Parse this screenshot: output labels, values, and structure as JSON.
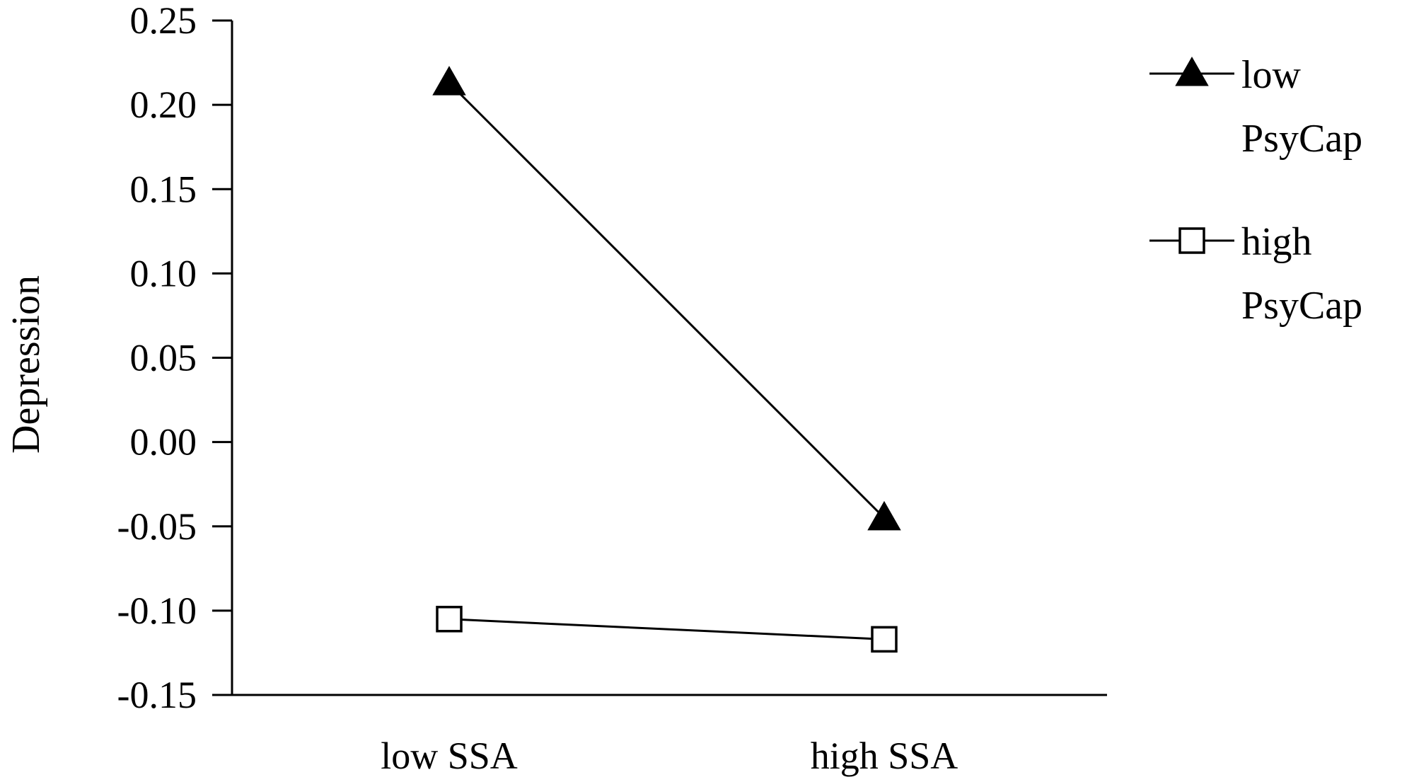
{
  "chart_data": {
    "type": "line",
    "categories": [
      "low SSA",
      "high SSA"
    ],
    "ylabel": "Depression",
    "ylim": [
      -0.15,
      0.25
    ],
    "yticks": [
      "0.25",
      "0.20",
      "0.15",
      "0.10",
      "0.05",
      "0.00",
      "-0.05",
      "-0.10",
      "-0.15"
    ],
    "grid": false,
    "legend_position": "right",
    "series": [
      {
        "name": "low PsyCap",
        "name_lines": [
          "low",
          "PsyCap"
        ],
        "values": [
          0.213,
          -0.045
        ],
        "marker": "filled-triangle"
      },
      {
        "name": "high PsyCap",
        "name_lines": [
          "high",
          "PsyCap"
        ],
        "values": [
          -0.105,
          -0.117
        ],
        "marker": "open-square"
      }
    ]
  }
}
